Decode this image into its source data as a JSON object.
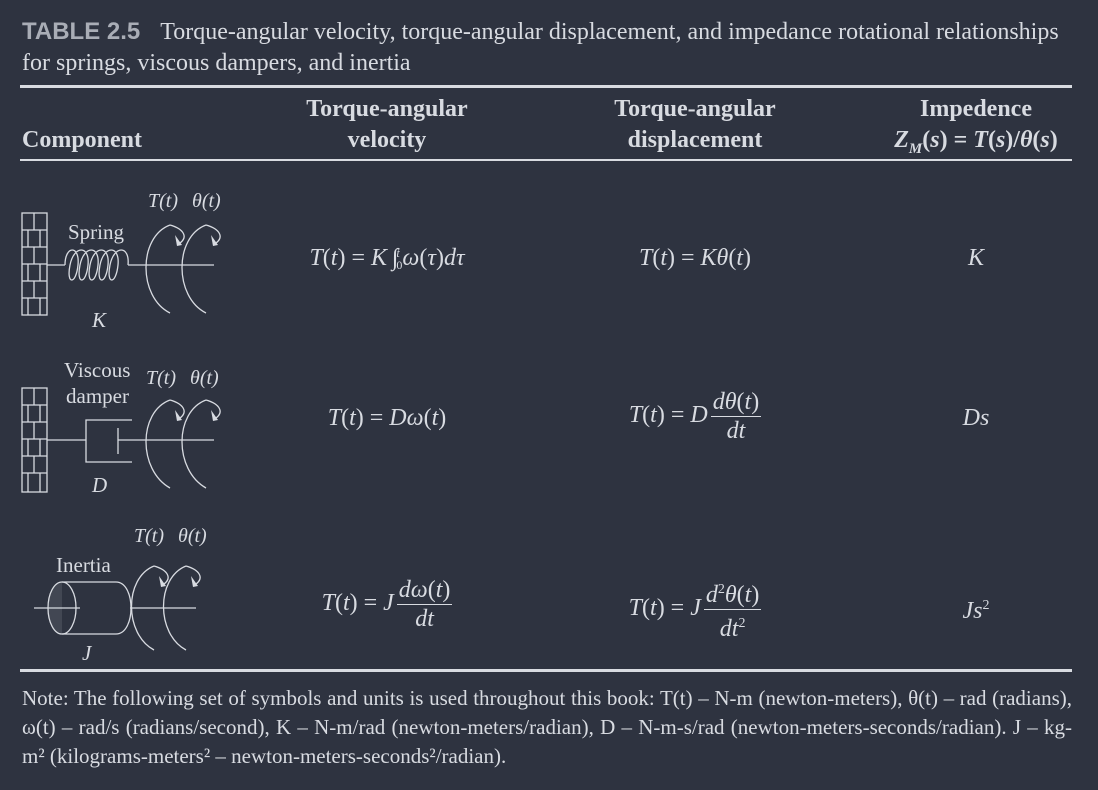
{
  "caption": {
    "label": "TABLE 2.5",
    "text": "Torque-angular velocity, torque-angular displacement, and impedance rotational relationships for springs, viscous dampers, and inertia"
  },
  "headers": {
    "component": "Component",
    "velocity_line1": "Torque-angular",
    "velocity_line2": "velocity",
    "displacement_line1": "Torque-angular",
    "displacement_line2": "displacement",
    "impedance_line1": "Impedence"
  },
  "diagrams": {
    "torque_label": "T(t)",
    "angle_label": "θ(t)",
    "spring_label": "Spring",
    "spring_symbol": "K",
    "damper_label_line1": "Viscous",
    "damper_label_line2": "damper",
    "damper_symbol": "D",
    "inertia_label": "Inertia",
    "inertia_symbol": "J"
  },
  "rows": [
    {
      "component": "spring",
      "impedance": "K"
    },
    {
      "component": "viscous damper",
      "impedance": "Ds"
    },
    {
      "component": "inertia",
      "impedance": "Js"
    }
  ],
  "note": {
    "prefix": "Note:",
    "text": "The following set of symbols and units is used throughout this book: T(t) – N-m (newton-meters), θ(t) – rad (radians), ω(t) – rad/s (radians/second), K – N-m/rad (newton-meters/radian), D – N-m-s/rad (newton-meters-seconds/radian). J – kg-m² (kilograms-meters² – newton-meters-seconds²/radian)."
  }
}
